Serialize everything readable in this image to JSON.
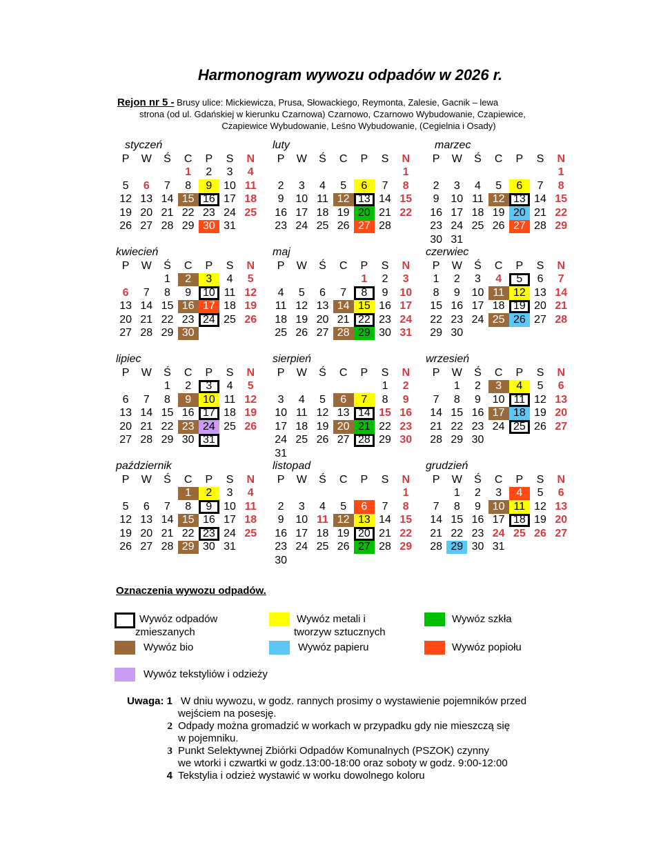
{
  "title": "Harmonogram wywozu odpadów w 2026 r.",
  "region": {
    "label": "Rejon nr 5 -",
    "line1": "Brusy ulice: Mickiewicza, Prusa, Słowackiego,  Reymonta, Zalesie, Gacnik – lewa",
    "line2": "strona  (od ul. Gdańskiej w kierunku Czarnowa) Czarnowo,   Czarnowo Wybudowanie, Czapiewice,",
    "line3": "Czapiewice Wybudowanie, Leśno Wybudowanie, (Cegielnia i Osady)"
  },
  "weekdays": [
    "P",
    "W",
    "Ś",
    "C",
    "P",
    "S",
    "N"
  ],
  "colors": {
    "bio": "#9b6a3b",
    "metal": "#ffff00",
    "glass": "#00c000",
    "paper": "#5cc6f5",
    "ash": "#ff4a14",
    "textile": "#c89cf2",
    "holiday": "#d8393f"
  },
  "months": [
    {
      "name": "styczeń",
      "offset": 3,
      "days": 31,
      "holidays": [
        1,
        6
      ],
      "marks": {
        "9": "metal",
        "15": "bio",
        "16": "mixed",
        "30": "ash"
      }
    },
    {
      "name": "luty",
      "offset": 6,
      "days": 28,
      "holidays": [],
      "marks": {
        "6": "metal",
        "12": "bio",
        "13": "mixed",
        "20": "glass",
        "27": "ash"
      }
    },
    {
      "name": "marzec",
      "offset": 6,
      "days": 31,
      "holidays": [],
      "marks": {
        "6": "metal",
        "12": "bio",
        "13": "mixed",
        "20": "paper",
        "27": "ash"
      }
    },
    {
      "name": "kwiecień",
      "offset": 2,
      "days": 30,
      "holidays": [
        6
      ],
      "marks": {
        "2": "bio",
        "3": "metal",
        "10": "mixed",
        "16": "bio",
        "17": "ash",
        "24": "mixed",
        "30": "bio"
      }
    },
    {
      "name": "maj",
      "offset": 4,
      "days": 31,
      "holidays": [
        1
      ],
      "marks": {
        "8": "mixed",
        "14": "bio",
        "15": "metal",
        "22": "mixed",
        "28": "bio",
        "29": "glass"
      }
    },
    {
      "name": "czerwiec",
      "offset": 0,
      "days": 30,
      "holidays": [
        4
      ],
      "marks": {
        "5": "mixed",
        "11": "bio",
        "12": "metal",
        "19": "mixed",
        "25": "bio",
        "26": "paper"
      }
    },
    {
      "name": "lipiec",
      "offset": 2,
      "days": 31,
      "holidays": [],
      "marks": {
        "3": "mixed",
        "9": "bio",
        "10": "metal",
        "17": "mixed",
        "23": "bio",
        "24": "textile",
        "31": "mixed"
      }
    },
    {
      "name": "sierpień",
      "offset": 5,
      "days": 31,
      "holidays": [
        15
      ],
      "marks": {
        "6": "bio",
        "7": "metal",
        "14": "mixed",
        "20": "bio",
        "21": "glass",
        "28": "mixed"
      }
    },
    {
      "name": "wrzesień",
      "offset": 1,
      "days": 30,
      "holidays": [],
      "marks": {
        "3": "bio",
        "4": "metal",
        "11": "mixed",
        "17": "bio",
        "18": "paper",
        "25": "mixed"
      }
    },
    {
      "name": "październik",
      "offset": 3,
      "days": 31,
      "holidays": [],
      "marks": {
        "1": "bio",
        "2": "metal",
        "9": "mixed",
        "15": "bio",
        "23": "mixed",
        "29": "bio"
      }
    },
    {
      "name": "listopad",
      "offset": 6,
      "days": 30,
      "holidays": [
        11
      ],
      "marks": {
        "6": "ash",
        "12": "bio",
        "13": "metal",
        "20": "mixed",
        "27": "glass"
      }
    },
    {
      "name": "grudzień",
      "offset": 1,
      "days": 31,
      "holidays": [
        24,
        25,
        26
      ],
      "marks": {
        "4": "ash",
        "10": "bio",
        "11": "metal",
        "18": "mixed",
        "29": "paper"
      }
    }
  ],
  "legend": {
    "title": "Oznaczenia wywozu odpadów.",
    "mixed_a": "Wywóz odpadów",
    "mixed_b": "zmieszanych",
    "metal_a": "Wywóz metali i",
    "metal_b": "tworzyw sztucznych",
    "glass": "Wywóz  szkła",
    "bio": "Wywóz bio",
    "paper": "Wywóz papieru",
    "ash": "Wywóz popiołu",
    "textile": "Wywóz tekstyliów i odzieży"
  },
  "notes": {
    "label": "Uwaga:",
    "items": [
      {
        "num": "1",
        "a": "W dniu wywozu, w godz. rannych prosimy o wystawienie pojemników przed",
        "b": "wejściem na posesję."
      },
      {
        "num": "2",
        "a": "Odpady można gromadzić w workach w przypadku gdy nie mieszczą się",
        "b": "w pojemniku."
      },
      {
        "num": "3",
        "a": "Punkt Selektywnej Zbiórki Odpadów Komunalnych (PSZOK) czynny",
        "b": "we wtorki i czwartki w godz.13:00-18:00 oraz soboty w godz. 9:00-12:00"
      },
      {
        "num": "4",
        "a": "Tekstylia i odzież wystawić w worku dowolnego koloru",
        "b": ""
      }
    ]
  }
}
